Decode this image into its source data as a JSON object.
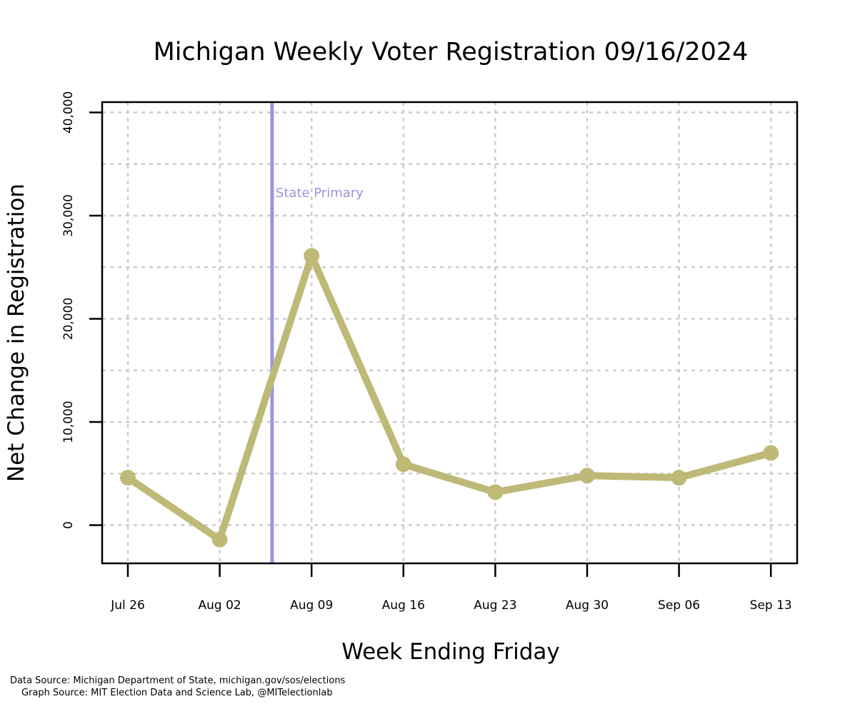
{
  "chart_data": {
    "type": "line",
    "title": "Michigan Weekly Voter Registration 09/16/2024",
    "xlabel": "Week Ending Friday",
    "ylabel": "Net Change in Registration",
    "categories": [
      "Jul 26",
      "Aug 02",
      "Aug 09",
      "Aug 16",
      "Aug 23",
      "Aug 30",
      "Sep 06",
      "Sep 13"
    ],
    "series": [
      {
        "values": [
          4600,
          -1400,
          26100,
          5900,
          3200,
          4800,
          4600,
          7000
        ],
        "color": "#bfb978"
      }
    ],
    "yticks": [
      0,
      10000,
      20000,
      30000,
      40000
    ],
    "ytick_labels": [
      "0",
      "10,000",
      "20,000",
      "30,000",
      "40,000"
    ],
    "ylim": [
      -3700,
      41000
    ],
    "grid": true,
    "grid_color": "#cccccc",
    "line_color": "#bfb978",
    "annotation": {
      "label": "State Primary",
      "position_between": [
        "Aug 02",
        "Aug 09"
      ],
      "fraction": 0.57,
      "color": "#9b94e0"
    }
  },
  "footer": {
    "data_source": "Data Source: Michigan Department of State, michigan.gov/sos/elections",
    "graph_source": "Graph Source: MIT Election Data and Science Lab, @MITelectionlab"
  }
}
